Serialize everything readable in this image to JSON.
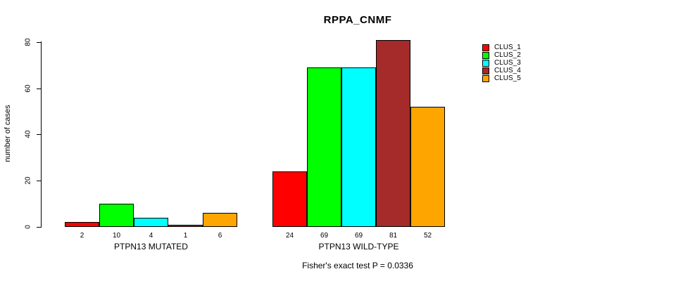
{
  "title": "RPPA_CNMF",
  "chart_data": {
    "type": "bar",
    "title": "RPPA_CNMF",
    "xlabel": "",
    "ylabel": "number of cases",
    "ylim": [
      0,
      80
    ],
    "yticks": [
      0,
      20,
      40,
      60,
      80
    ],
    "grid": false,
    "legend_position": "right",
    "bar_value_labels": true,
    "categories": [
      "PTPN13 MUTATED",
      "PTPN13 WILD-TYPE"
    ],
    "series": [
      {
        "name": "CLUS_1",
        "color": "#FF0000",
        "values": [
          2,
          24
        ]
      },
      {
        "name": "CLUS_2",
        "color": "#00FF00",
        "values": [
          10,
          69
        ]
      },
      {
        "name": "CLUS_3",
        "color": "#00FFFF",
        "values": [
          4,
          69
        ]
      },
      {
        "name": "CLUS_4",
        "color": "#A52A2A",
        "values": [
          1,
          81
        ]
      },
      {
        "name": "CLUS_5",
        "color": "#FFA500",
        "values": [
          6,
          52
        ]
      }
    ],
    "annotation": "Fisher's exact test P = 0.0336"
  },
  "colors": {
    "background": "#FFFFFF",
    "axis": "#000000",
    "text": "#000000"
  }
}
